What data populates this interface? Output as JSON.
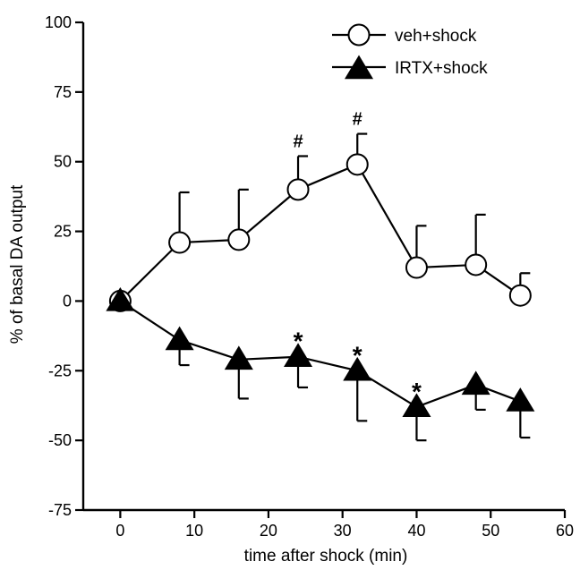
{
  "chart_data": {
    "type": "line",
    "xlabel": "time after shock (min)",
    "ylabel": "% of basal DA output",
    "xlim": [
      -5,
      60
    ],
    "ylim": [
      -75,
      100
    ],
    "xticks": [
      0,
      10,
      20,
      30,
      40,
      50,
      60
    ],
    "yticks": [
      100,
      75,
      50,
      25,
      0,
      -25,
      -50,
      -75
    ],
    "legend_position": "top-right",
    "series": [
      {
        "name": "veh+shock",
        "marker": "open-circle",
        "x": [
          0,
          8,
          16,
          24,
          32,
          40,
          48,
          54
        ],
        "y": [
          0,
          21,
          22,
          40,
          49,
          12,
          13,
          2
        ],
        "err": [
          0,
          18,
          18,
          12,
          11,
          15,
          18,
          8
        ],
        "err_direction": "up",
        "annotations": [
          {
            "x": 24,
            "text": "#"
          },
          {
            "x": 32,
            "text": "#"
          }
        ]
      },
      {
        "name": "IRTX+shock",
        "marker": "filled-triangle",
        "x": [
          0,
          8,
          16,
          24,
          32,
          40,
          48,
          54
        ],
        "y": [
          0,
          -14,
          -21,
          -20,
          -25,
          -38,
          -30,
          -36
        ],
        "err": [
          0,
          9,
          14,
          11,
          18,
          12,
          9,
          13
        ],
        "err_direction": "down",
        "annotations": [
          {
            "x": 24,
            "text": "*"
          },
          {
            "x": 32,
            "text": "*"
          },
          {
            "x": 40,
            "text": "*"
          }
        ]
      }
    ]
  }
}
